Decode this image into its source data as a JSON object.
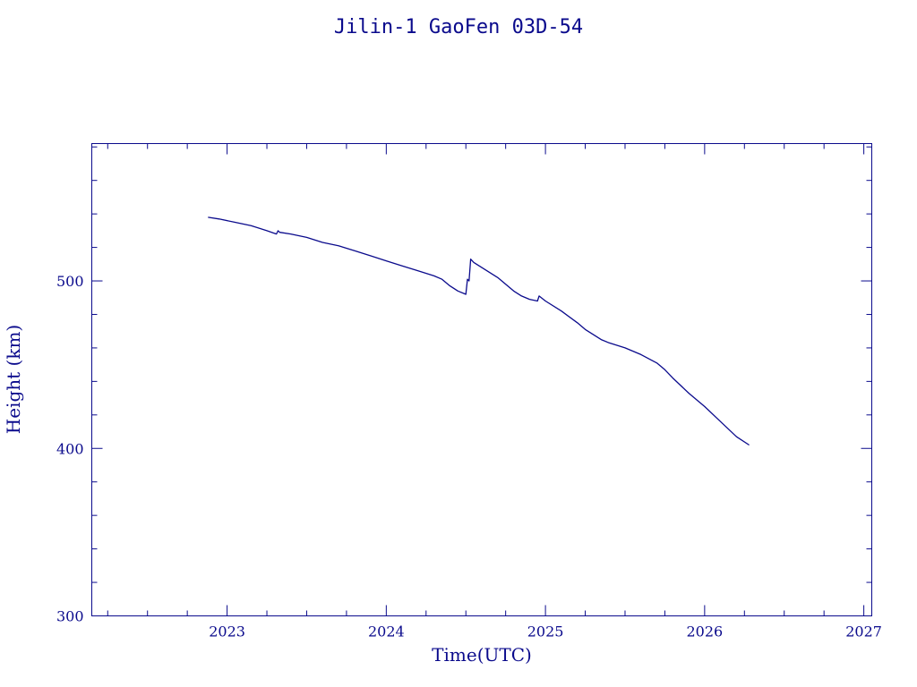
{
  "chart_data": {
    "type": "line",
    "title": "Jilin-1 GaoFen 03D-54",
    "xlabel": "Time(UTC)",
    "ylabel": "Height (km)",
    "xlim": [
      2022.15,
      2027.05
    ],
    "ylim": [
      300,
      582
    ],
    "x_ticks": [
      2023,
      2024,
      2025,
      2026,
      2027
    ],
    "x_tick_labels": [
      "2023",
      "2024",
      "2025",
      "2026",
      "2027"
    ],
    "x_minor_step": 0.25,
    "y_ticks": [
      300,
      400,
      500
    ],
    "y_tick_labels": [
      "300",
      "400",
      "500"
    ],
    "y_minor_step": 20,
    "grid": false,
    "color": "#0a0a8c",
    "series": [
      {
        "x": [
          2022.88,
          2022.95,
          2023.05,
          2023.15,
          2023.25,
          2023.31,
          2023.32,
          2023.33,
          2023.4,
          2023.5,
          2023.6,
          2023.7,
          2023.8,
          2023.9,
          2024.0,
          2024.1,
          2024.2,
          2024.3,
          2024.35,
          2024.4,
          2024.45,
          2024.5,
          2024.51,
          2024.52,
          2024.53,
          2024.55,
          2024.6,
          2024.7,
          2024.8,
          2024.85,
          2024.9,
          2024.95,
          2024.96,
          2025.0,
          2025.1,
          2025.2,
          2025.25,
          2025.3,
          2025.35,
          2025.4,
          2025.5,
          2025.6,
          2025.7,
          2025.75,
          2025.8,
          2025.9,
          2026.0,
          2026.1,
          2026.2,
          2026.28
        ],
        "y": [
          538,
          537,
          535,
          533,
          530,
          528,
          530,
          529,
          528,
          526,
          523,
          521,
          518,
          515,
          512,
          509,
          506,
          503,
          501,
          497,
          494,
          492,
          501,
          500,
          513,
          511,
          508,
          502,
          494,
          491,
          489,
          488,
          491,
          488,
          482,
          475,
          471,
          468,
          465,
          463,
          460,
          456,
          451,
          447,
          442,
          433,
          425,
          416,
          407,
          402
        ]
      }
    ]
  }
}
